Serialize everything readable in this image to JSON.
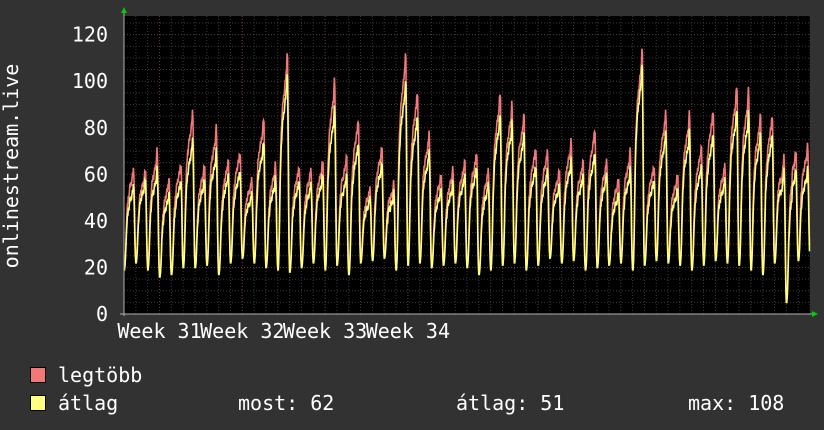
{
  "chart_data": {
    "type": "line",
    "ylabel": "onlinestream.live",
    "ylim": [
      0,
      128
    ],
    "yticks": [
      0,
      20,
      40,
      60,
      80,
      100,
      120
    ],
    "xticks": [
      "Week 31",
      "Week 32",
      "Week 33",
      "Week 34"
    ],
    "series": [
      {
        "name": "legtöbb",
        "color": "#f07878",
        "daily_peaks": [
          62,
          62,
          70,
          58,
          65,
          87,
          64,
          80,
          66,
          70,
          58,
          84,
          64,
          112,
          64,
          62,
          66,
          100,
          68,
          84,
          54,
          72,
          56,
          112,
          96,
          78,
          60,
          62,
          66,
          70,
          62,
          95,
          90,
          86,
          72,
          70,
          62,
          74,
          66,
          80,
          66,
          58,
          70,
          114,
          64,
          87,
          60,
          86,
          72,
          88,
          64,
          98,
          96,
          86,
          86,
          68,
          70,
          72
        ],
        "daily_mins": [
          19,
          24,
          20,
          16,
          18,
          22,
          21,
          22,
          18,
          23,
          26,
          24,
          21,
          20,
          19,
          21,
          24,
          20,
          22,
          18,
          24,
          25,
          26,
          20,
          22,
          24,
          21,
          22,
          23,
          21,
          18,
          20,
          22,
          24,
          20,
          22,
          26,
          23,
          24,
          20,
          21,
          22,
          24,
          20,
          22,
          25,
          24,
          22,
          20,
          22,
          25,
          24,
          22,
          20,
          18,
          24,
          6,
          25
        ]
      },
      {
        "name": "átlag",
        "color": "#ffff80",
        "daily_peaks": [
          55,
          58,
          62,
          52,
          58,
          75,
          58,
          70,
          60,
          62,
          52,
          74,
          58,
          103,
          58,
          56,
          60,
          88,
          60,
          74,
          50,
          65,
          52,
          100,
          86,
          70,
          54,
          56,
          60,
          64,
          56,
          86,
          82,
          78,
          64,
          62,
          56,
          66,
          60,
          70,
          60,
          52,
          62,
          107,
          58,
          78,
          54,
          78,
          64,
          78,
          58,
          88,
          86,
          78,
          78,
          62,
          62,
          62
        ],
        "daily_mins": [
          19,
          22,
          19,
          16,
          17,
          20,
          20,
          21,
          17,
          22,
          24,
          22,
          20,
          19,
          18,
          20,
          22,
          19,
          21,
          17,
          22,
          23,
          24,
          19,
          21,
          22,
          20,
          21,
          22,
          20,
          17,
          19,
          21,
          22,
          19,
          21,
          24,
          22,
          23,
          19,
          20,
          21,
          22,
          19,
          21,
          23,
          22,
          21,
          19,
          21,
          23,
          22,
          21,
          19,
          17,
          22,
          5,
          23
        ]
      }
    ],
    "grid": true
  },
  "legend": {
    "series": [
      {
        "label": "legtöbb",
        "color": "#f07878"
      },
      {
        "label": "átlag",
        "color": "#ffff80"
      }
    ],
    "stats": {
      "most": "most: 62",
      "atlag": "átlag: 51",
      "max": "max: 108"
    }
  }
}
